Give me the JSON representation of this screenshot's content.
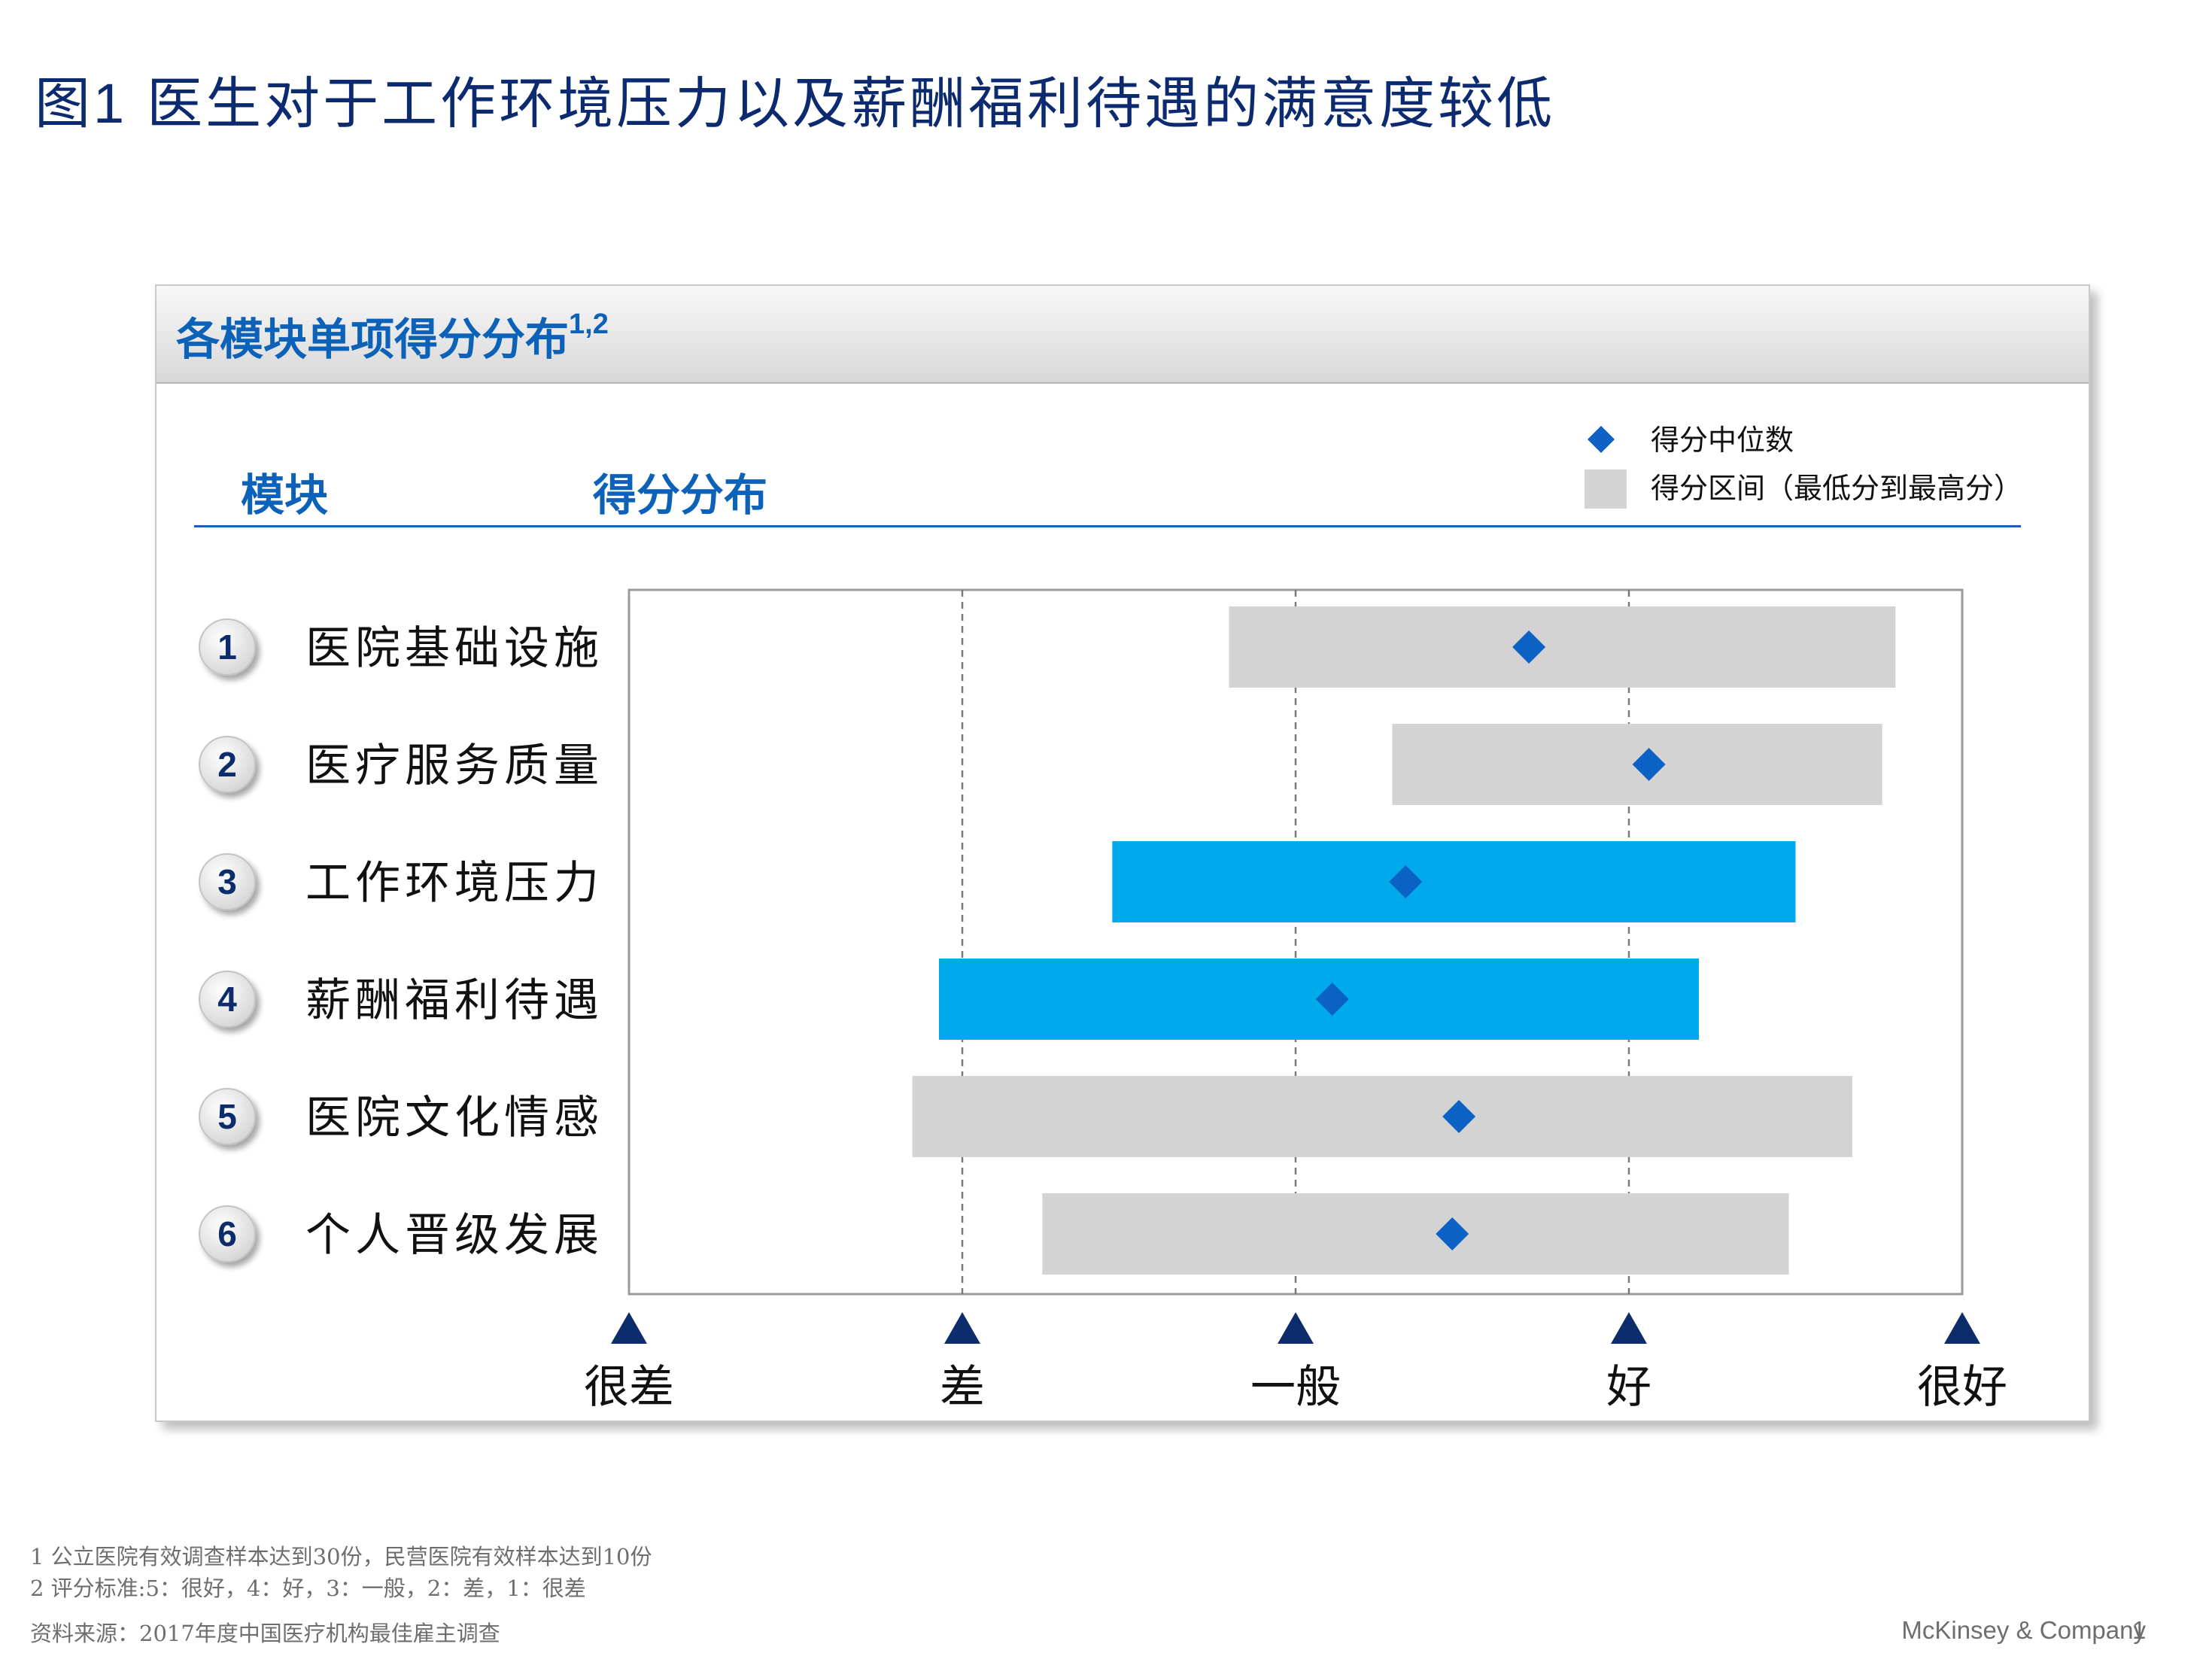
{
  "header": {
    "figure_label": "图1",
    "title": "医生对于工作环境压力以及薪酬福利待遇的满意度较低"
  },
  "panel": {
    "title": "各模块单项得分分布",
    "title_sup": "1,2",
    "col_module": "模块",
    "col_distribution": "得分分布"
  },
  "legend": {
    "median": "得分中位数",
    "range": "得分区间（最低分到最高分）"
  },
  "chart_data": {
    "type": "range-bar",
    "x_ticks": [
      1,
      2,
      3,
      4,
      5
    ],
    "x_tick_labels": [
      "很差",
      "差",
      "一般",
      "好",
      "很好"
    ],
    "xlim": [
      1,
      5
    ],
    "categories": [
      {
        "num": "1",
        "label": "医院基础设施",
        "min": 2.8,
        "max": 4.8,
        "median": 3.7,
        "highlight": false
      },
      {
        "num": "2",
        "label": "医疗服务质量",
        "min": 3.29,
        "max": 4.76,
        "median": 4.06,
        "highlight": false
      },
      {
        "num": "3",
        "label": "工作环境压力",
        "min": 2.45,
        "max": 4.5,
        "median": 3.33,
        "highlight": true
      },
      {
        "num": "4",
        "label": "薪酬福利待遇",
        "min": 1.93,
        "max": 4.21,
        "median": 3.11,
        "highlight": true
      },
      {
        "num": "5",
        "label": "医院文化情感",
        "min": 1.85,
        "max": 4.67,
        "median": 3.49,
        "highlight": false
      },
      {
        "num": "6",
        "label": "个人晋级发展",
        "min": 2.24,
        "max": 4.48,
        "median": 3.47,
        "highlight": false
      }
    ],
    "colors": {
      "range": "#d3d3d3",
      "highlight": "#00aaea",
      "median": "#0b62c4",
      "axis_marker": "#0c2c6c",
      "grid": "#7a7a7a"
    },
    "grid": "dashed-vertical"
  },
  "footnotes": {
    "note1": "1 公立医院有效调查样本达到30份，民营医院有效样本达到10份",
    "note2": "2 评分标准:5：很好，4：好，3：一般，2：差，1：很差",
    "source": "资料来源：2017年度中国医疗机构最佳雇主调查"
  },
  "brand": "McKinsey & Company",
  "page_number": "1"
}
